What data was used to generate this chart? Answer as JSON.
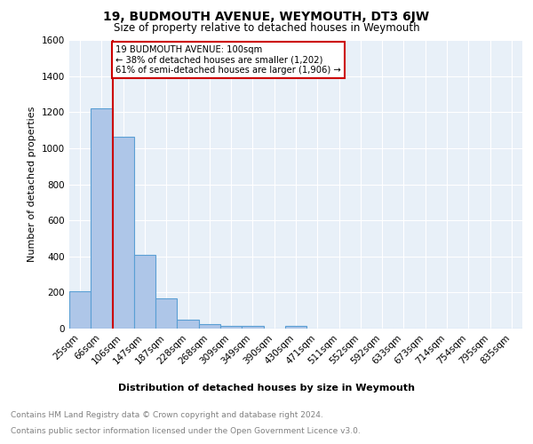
{
  "title": "19, BUDMOUTH AVENUE, WEYMOUTH, DT3 6JW",
  "subtitle": "Size of property relative to detached houses in Weymouth",
  "xlabel": "Distribution of detached houses by size in Weymouth",
  "ylabel": "Number of detached properties",
  "bar_labels": [
    "25sqm",
    "66sqm",
    "106sqm",
    "147sqm",
    "187sqm",
    "228sqm",
    "268sqm",
    "309sqm",
    "349sqm",
    "390sqm",
    "430sqm",
    "471sqm",
    "511sqm",
    "552sqm",
    "592sqm",
    "633sqm",
    "673sqm",
    "714sqm",
    "754sqm",
    "795sqm",
    "835sqm"
  ],
  "bar_values": [
    205,
    1220,
    1065,
    410,
    165,
    48,
    25,
    15,
    15,
    0,
    15,
    0,
    0,
    0,
    0,
    0,
    0,
    0,
    0,
    0,
    0
  ],
  "bar_color": "#aec6e8",
  "bar_edge_color": "#5a9fd4",
  "vline_x": 1.5,
  "vline_color": "#cc0000",
  "annotation_text": "19 BUDMOUTH AVENUE: 100sqm\n← 38% of detached houses are smaller (1,202)\n61% of semi-detached houses are larger (1,906) →",
  "annotation_box_color": "#ffffff",
  "annotation_box_edge": "#cc0000",
  "ylim": [
    0,
    1600
  ],
  "yticks": [
    0,
    200,
    400,
    600,
    800,
    1000,
    1200,
    1400,
    1600
  ],
  "footer_line1": "Contains HM Land Registry data © Crown copyright and database right 2024.",
  "footer_line2": "Contains public sector information licensed under the Open Government Licence v3.0.",
  "bg_color": "#e8f0f8",
  "fig_bg_color": "#ffffff",
  "grid_color": "#ffffff",
  "title_fontsize": 10,
  "subtitle_fontsize": 8.5,
  "ylabel_fontsize": 8,
  "xlabel_fontsize": 8,
  "tick_fontsize": 7.5,
  "annotation_fontsize": 7.2,
  "footer_fontsize": 6.5
}
